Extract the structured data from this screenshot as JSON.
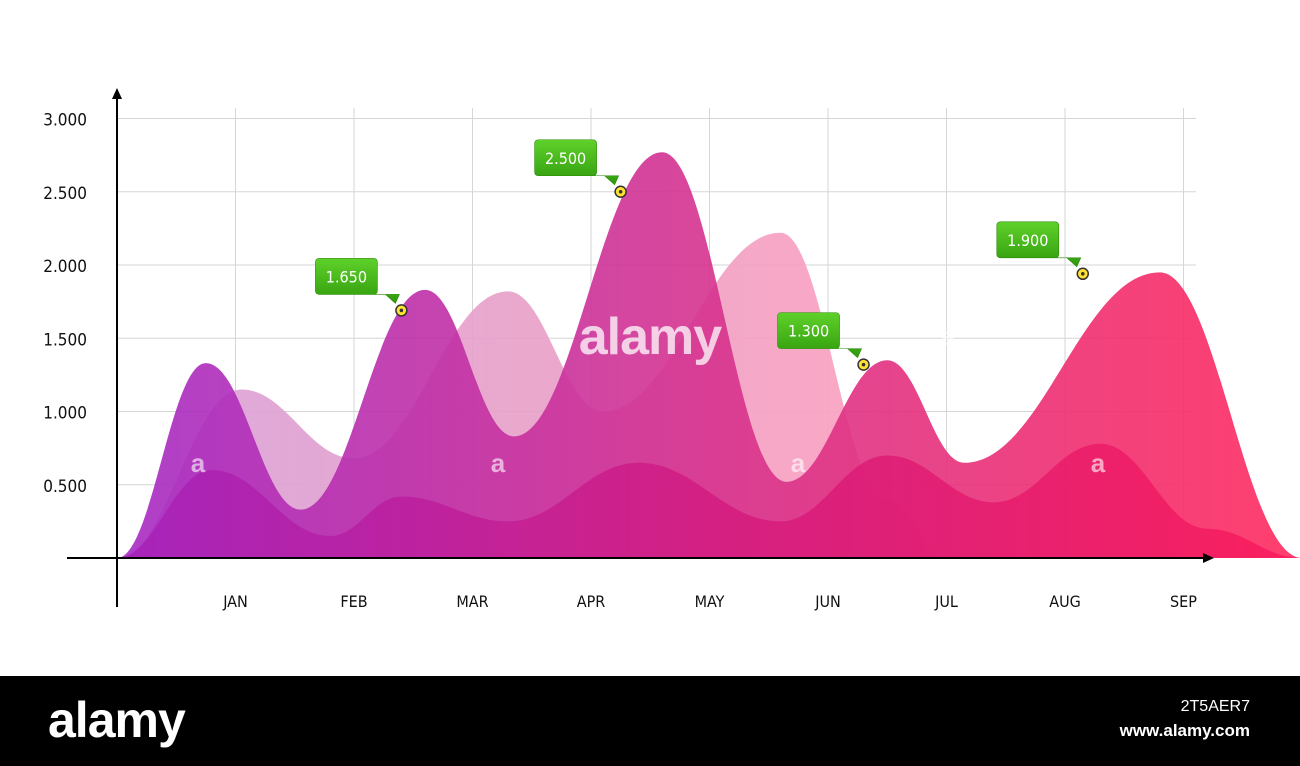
{
  "chart_data": {
    "type": "area",
    "categories": [
      "JAN",
      "FEB",
      "MAR",
      "APR",
      "MAY",
      "JUN",
      "JUL",
      "AUG",
      "SEP"
    ],
    "y_ticks": [
      "0.500",
      "1.000",
      "1.500",
      "2.000",
      "2.500",
      "3.000"
    ],
    "ylim": [
      0,
      3
    ],
    "grid": true,
    "series": [
      {
        "color": "#ea9fce",
        "points": [
          [
            -1,
            0
          ],
          [
            0.05,
            1.15
          ],
          [
            1.0,
            0.68
          ],
          [
            2.3,
            1.82
          ],
          [
            3.1,
            1.0
          ],
          [
            4.6,
            2.22
          ],
          [
            5.5,
            0.4
          ],
          [
            6.0,
            0
          ]
        ]
      },
      {
        "color": "#d2358f",
        "points": [
          [
            -1,
            0
          ],
          [
            -0.25,
            1.33
          ],
          [
            0.55,
            0.33
          ],
          [
            1.6,
            1.83
          ],
          [
            2.35,
            0.83
          ],
          [
            3.6,
            2.77
          ],
          [
            4.65,
            0.52
          ],
          [
            5.5,
            1.35
          ],
          [
            6.15,
            0.65
          ],
          [
            7.8,
            1.95
          ],
          [
            9.0,
            0
          ]
        ]
      },
      {
        "color": "#e11f78",
        "points": [
          [
            -1,
            0
          ],
          [
            -0.2,
            0.6
          ],
          [
            0.8,
            0.15
          ],
          [
            1.4,
            0.42
          ],
          [
            2.3,
            0.25
          ],
          [
            3.4,
            0.65
          ],
          [
            4.6,
            0.25
          ],
          [
            5.5,
            0.7
          ],
          [
            6.4,
            0.38
          ],
          [
            7.3,
            0.78
          ],
          [
            8.2,
            0.2
          ],
          [
            9.0,
            0
          ]
        ]
      }
    ],
    "annotations": [
      {
        "x": 1.4,
        "y": 1.69,
        "label": "1.650"
      },
      {
        "x": 3.25,
        "y": 2.5,
        "label": "2.500"
      },
      {
        "x": 5.3,
        "y": 1.32,
        "label": "1.300"
      },
      {
        "x": 7.15,
        "y": 1.94,
        "label": "1.900"
      }
    ]
  },
  "watermarks": [
    "alamy",
    "a"
  ],
  "footer": {
    "logo": "alamy",
    "image_id": "2T5AER7",
    "site": "www.alamy.com"
  }
}
